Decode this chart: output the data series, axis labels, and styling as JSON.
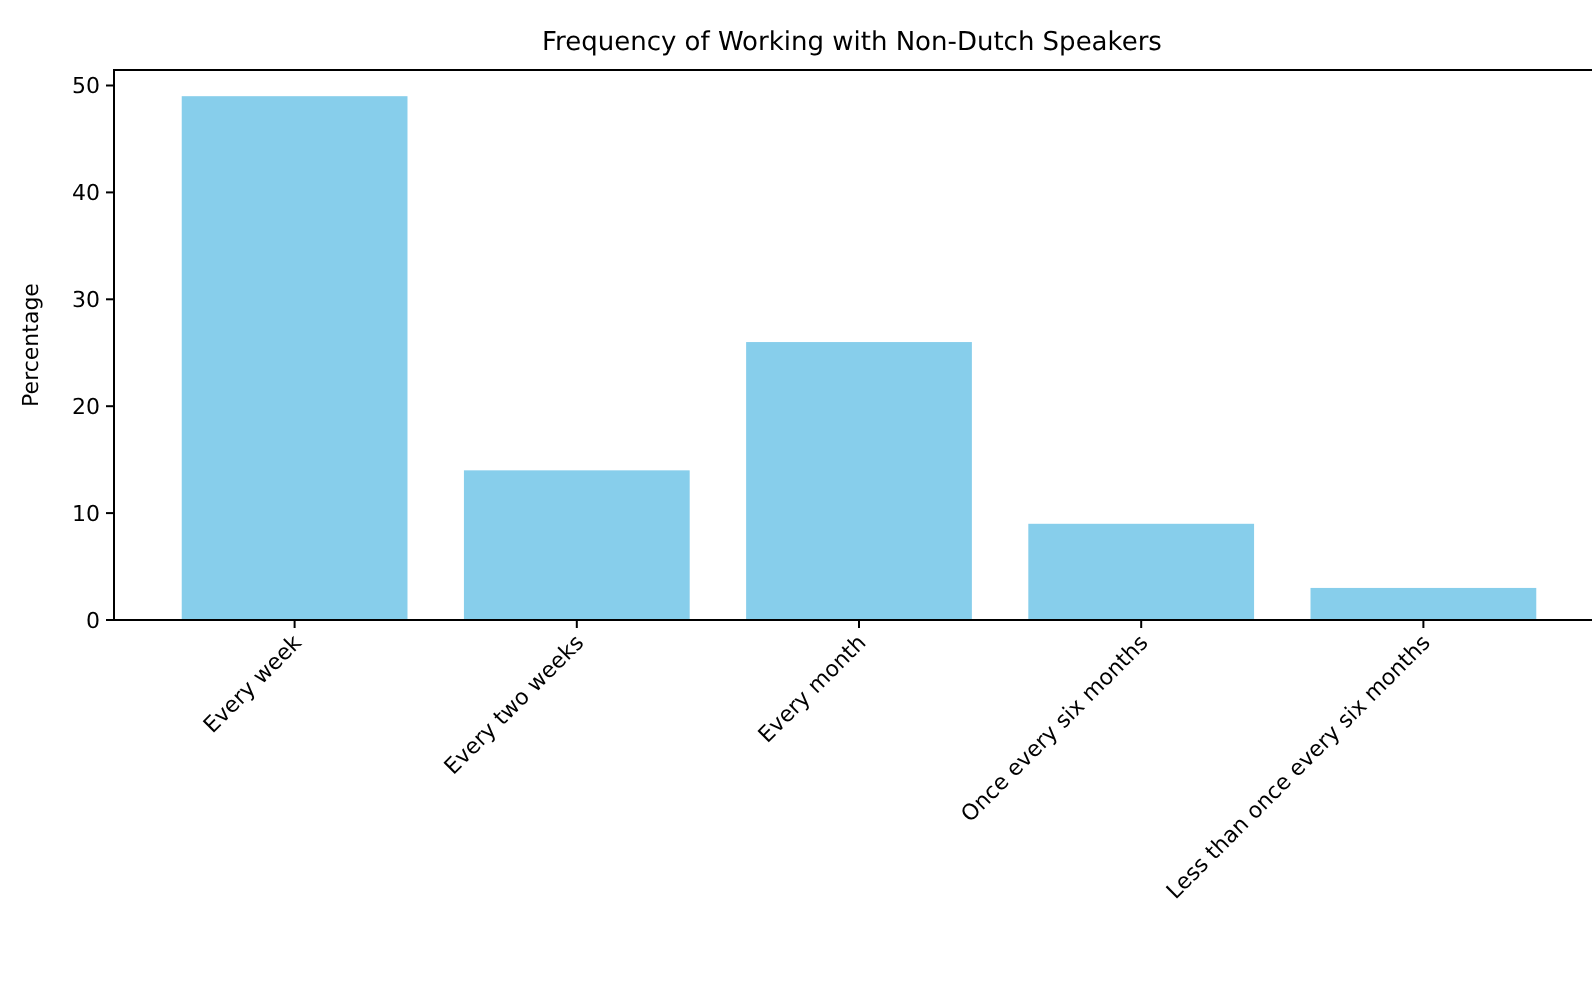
{
  "chart_data": {
    "type": "bar",
    "title": "Frequency of Working with Non-Dutch Speakers",
    "ylabel": "Percentage",
    "categories": [
      "Every week",
      "Every two weeks",
      "Every month",
      "Once every six months",
      "Less than once every six months"
    ],
    "values": [
      49,
      14,
      26,
      9,
      3
    ],
    "color": "#87ceeb",
    "ylim": [
      0,
      51.45
    ],
    "yticks": [
      0,
      10,
      20,
      30,
      40,
      50
    ],
    "grid": false
  }
}
